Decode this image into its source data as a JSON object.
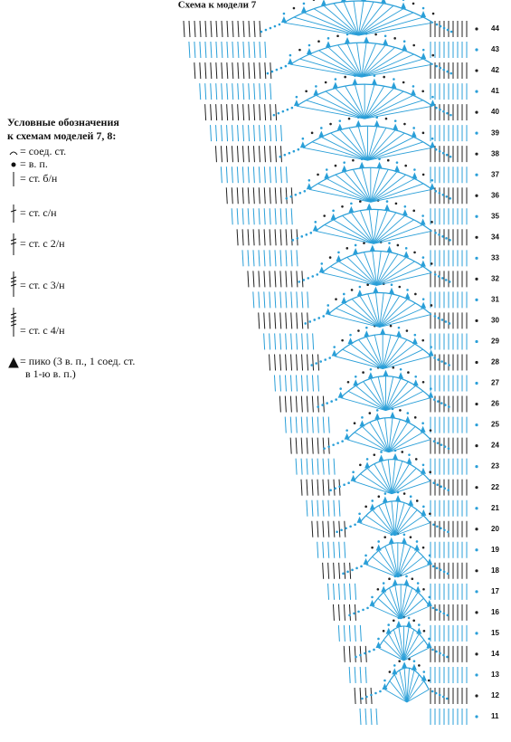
{
  "header": {
    "title": "Схема к модели 7"
  },
  "legend": {
    "title": [
      "Условные обозначения",
      "к схемам моделей 7, 8:"
    ],
    "items": [
      {
        "lines": [
          "= соед. ст."
        ]
      },
      {
        "lines": [
          "= в. п."
        ]
      },
      {
        "lines": [
          "= ст. б/н"
        ]
      },
      {
        "lines": [
          "= ст. с/н"
        ]
      },
      {
        "lines": [
          "= ст. с 2/н"
        ]
      },
      {
        "lines": [
          "= ст. с 3/н"
        ]
      },
      {
        "lines": [
          "= ст. с 4/н"
        ]
      },
      {
        "lines": [
          "= пико (3 в. п., 1 соед. ст.",
          "в 1-ю в. п.)"
        ]
      }
    ]
  },
  "diagram": {
    "row_numbers": [
      "11",
      "12",
      "13",
      "14",
      "15",
      "16",
      "17",
      "18",
      "19",
      "20",
      "21",
      "22",
      "23",
      "24",
      "25",
      "26",
      "27",
      "28",
      "29",
      "30",
      "31",
      "32",
      "33",
      "34",
      "35",
      "36",
      "37",
      "38",
      "39",
      "40",
      "41",
      "42",
      "43",
      "44"
    ]
  }
}
